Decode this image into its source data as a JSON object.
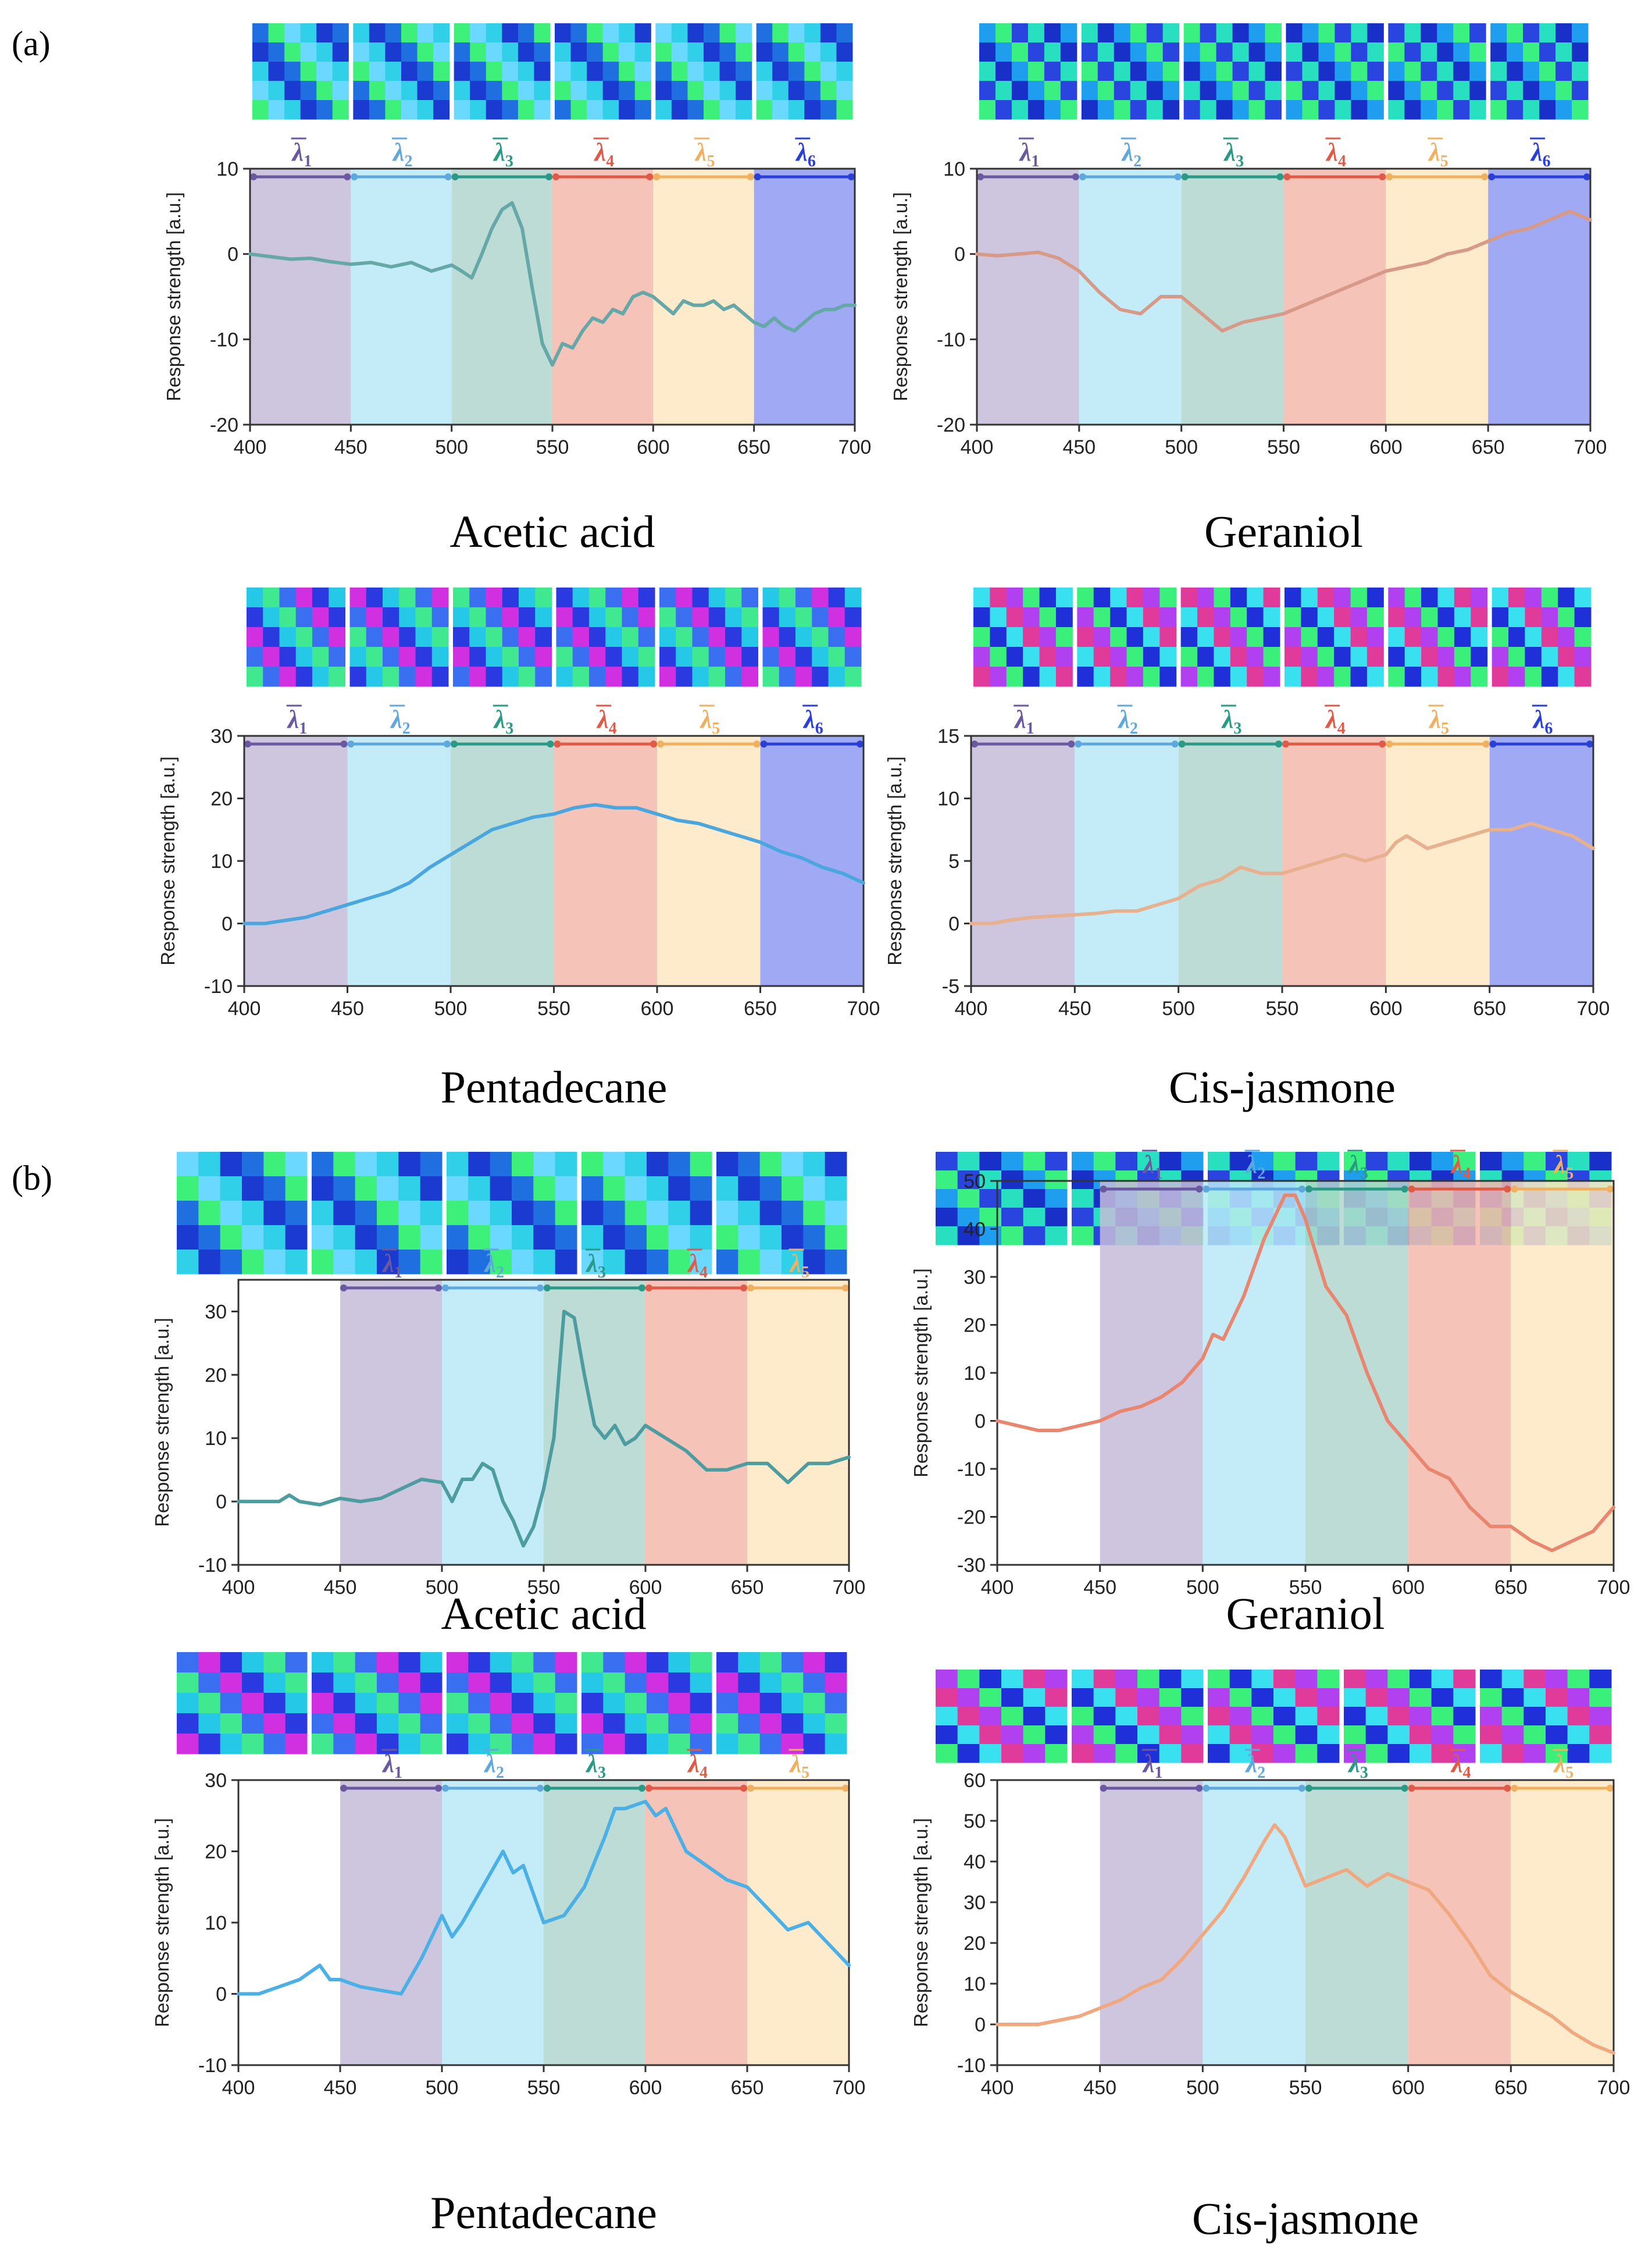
{
  "colors": {
    "band_fill": [
      "#c6bcd9",
      "#b8e9f7",
      "#b2d6cf",
      "#f4b9ad",
      "#fde8c2",
      "#8e9af2"
    ],
    "band_arrow": [
      "#6a58a0",
      "#5fa8de",
      "#2a9a86",
      "#e05a48",
      "#f0b060",
      "#2a3fd8"
    ],
    "line": [
      "#66a7a8",
      "#d79a88",
      "#4aa6df",
      "#e7b08f",
      "#4d9da0",
      "#e8866f",
      "#4ab0e6",
      "#f0a880"
    ]
  },
  "panels": {
    "a": "(a)",
    "b": "(b)"
  },
  "chart_data": [
    {
      "id": "a1",
      "type": "line",
      "title": "Acetic acid",
      "xlabel": "",
      "ylabel": "Response strength [a.u.]",
      "xlim": [
        400,
        700
      ],
      "ylim": [
        -20,
        10
      ],
      "xticks": [
        400,
        450,
        500,
        550,
        600,
        650,
        700
      ],
      "yticks": [
        -20,
        -10,
        0,
        10
      ],
      "bands": [
        {
          "label": "λ",
          "sub": "1",
          "range": [
            400,
            450
          ]
        },
        {
          "label": "λ",
          "sub": "2",
          "range": [
            450,
            500
          ]
        },
        {
          "label": "λ",
          "sub": "3",
          "range": [
            500,
            550
          ]
        },
        {
          "label": "λ",
          "sub": "4",
          "range": [
            550,
            600
          ]
        },
        {
          "label": "λ",
          "sub": "5",
          "range": [
            600,
            650
          ]
        },
        {
          "label": "λ",
          "sub": "6",
          "range": [
            650,
            700
          ]
        }
      ],
      "x": [
        400,
        410,
        420,
        430,
        440,
        450,
        460,
        470,
        480,
        490,
        500,
        505,
        510,
        515,
        520,
        525,
        530,
        535,
        540,
        545,
        550,
        555,
        560,
        565,
        570,
        575,
        580,
        585,
        590,
        595,
        600,
        605,
        610,
        615,
        620,
        625,
        630,
        635,
        640,
        645,
        650,
        655,
        660,
        665,
        670,
        675,
        680,
        685,
        690,
        695,
        700
      ],
      "y": [
        0,
        -0.3,
        -0.6,
        -0.5,
        -0.9,
        -1.2,
        -1.0,
        -1.5,
        -1.0,
        -2.0,
        -1.3,
        -2.0,
        -2.8,
        0.0,
        3.0,
        5.2,
        6.0,
        3.0,
        -4.0,
        -10.5,
        -13.0,
        -10.5,
        -11.0,
        -9.0,
        -7.5,
        -8.0,
        -6.5,
        -7.0,
        -5.0,
        -4.5,
        -5.0,
        -6.0,
        -7.0,
        -5.5,
        -6.0,
        -6.0,
        -5.5,
        -6.5,
        -6.0,
        -7.0,
        -8.0,
        -8.5,
        -7.5,
        -8.5,
        -9.0,
        -8.0,
        -7.0,
        -6.5,
        -6.5,
        -6.0,
        -6.0
      ]
    },
    {
      "id": "a2",
      "type": "line",
      "title": "Geraniol",
      "xlabel": "",
      "ylabel": "Response strength [a.u.]",
      "xlim": [
        400,
        700
      ],
      "ylim": [
        -20,
        10
      ],
      "xticks": [
        400,
        450,
        500,
        550,
        600,
        650,
        700
      ],
      "yticks": [
        -20,
        -10,
        0,
        10
      ],
      "bands": [
        {
          "label": "λ",
          "sub": "1",
          "range": [
            400,
            450
          ]
        },
        {
          "label": "λ",
          "sub": "2",
          "range": [
            450,
            500
          ]
        },
        {
          "label": "λ",
          "sub": "3",
          "range": [
            500,
            550
          ]
        },
        {
          "label": "λ",
          "sub": "4",
          "range": [
            550,
            600
          ]
        },
        {
          "label": "λ",
          "sub": "5",
          "range": [
            600,
            650
          ]
        },
        {
          "label": "λ",
          "sub": "6",
          "range": [
            650,
            700
          ]
        }
      ],
      "x": [
        400,
        410,
        420,
        430,
        440,
        450,
        460,
        470,
        480,
        490,
        500,
        510,
        520,
        530,
        540,
        550,
        560,
        570,
        580,
        590,
        600,
        610,
        620,
        630,
        640,
        650,
        660,
        670,
        680,
        690,
        700
      ],
      "y": [
        0,
        -0.2,
        0.0,
        0.2,
        -0.5,
        -2.0,
        -4.5,
        -6.5,
        -7.0,
        -5.0,
        -5.0,
        -7.0,
        -9.0,
        -8.0,
        -7.5,
        -7.0,
        -6.0,
        -5.0,
        -4.0,
        -3.0,
        -2.0,
        -1.5,
        -1.0,
        0.0,
        0.5,
        1.5,
        2.5,
        3.0,
        4.0,
        5.0,
        4.0
      ]
    },
    {
      "id": "a3",
      "type": "line",
      "title": "Pentadecane",
      "xlabel": "",
      "ylabel": "Response strength [a.u.]",
      "xlim": [
        400,
        700
      ],
      "ylim": [
        -10,
        30
      ],
      "xticks": [
        400,
        450,
        500,
        550,
        600,
        650,
        700
      ],
      "yticks": [
        -10,
        0,
        10,
        20,
        30
      ],
      "bands": [
        {
          "label": "λ",
          "sub": "1",
          "range": [
            400,
            450
          ]
        },
        {
          "label": "λ",
          "sub": "2",
          "range": [
            450,
            500
          ]
        },
        {
          "label": "λ",
          "sub": "3",
          "range": [
            500,
            550
          ]
        },
        {
          "label": "λ",
          "sub": "4",
          "range": [
            550,
            600
          ]
        },
        {
          "label": "λ",
          "sub": "5",
          "range": [
            600,
            650
          ]
        },
        {
          "label": "λ",
          "sub": "6",
          "range": [
            650,
            700
          ]
        }
      ],
      "x": [
        400,
        410,
        420,
        430,
        440,
        450,
        460,
        470,
        480,
        490,
        500,
        510,
        520,
        530,
        540,
        550,
        560,
        570,
        580,
        590,
        600,
        610,
        620,
        630,
        640,
        650,
        660,
        670,
        680,
        690,
        700
      ],
      "y": [
        0,
        0,
        0.5,
        1.0,
        2.0,
        3.0,
        4.0,
        5.0,
        6.5,
        9.0,
        11.0,
        13.0,
        15.0,
        16.0,
        17.0,
        17.5,
        18.5,
        19.0,
        18.5,
        18.5,
        17.5,
        16.5,
        16.0,
        15.0,
        14.0,
        13.0,
        11.5,
        10.5,
        9.0,
        8.0,
        6.5
      ]
    },
    {
      "id": "a4",
      "type": "line",
      "title": "Cis-jasmone",
      "xlabel": "",
      "ylabel": "Response strength [a.u.]",
      "xlim": [
        400,
        700
      ],
      "ylim": [
        -5,
        15
      ],
      "xticks": [
        400,
        450,
        500,
        550,
        600,
        650,
        700
      ],
      "yticks": [
        -5,
        0,
        5,
        10,
        15
      ],
      "bands": [
        {
          "label": "λ",
          "sub": "1",
          "range": [
            400,
            450
          ]
        },
        {
          "label": "λ",
          "sub": "2",
          "range": [
            450,
            500
          ]
        },
        {
          "label": "λ",
          "sub": "3",
          "range": [
            500,
            550
          ]
        },
        {
          "label": "λ",
          "sub": "4",
          "range": [
            550,
            600
          ]
        },
        {
          "label": "λ",
          "sub": "5",
          "range": [
            600,
            650
          ]
        },
        {
          "label": "λ",
          "sub": "6",
          "range": [
            650,
            700
          ]
        }
      ],
      "x": [
        400,
        410,
        420,
        430,
        440,
        450,
        460,
        470,
        480,
        490,
        500,
        510,
        520,
        530,
        540,
        550,
        560,
        570,
        580,
        590,
        600,
        605,
        610,
        620,
        630,
        640,
        650,
        660,
        670,
        680,
        690,
        700
      ],
      "y": [
        0,
        0,
        0.3,
        0.5,
        0.6,
        0.7,
        0.8,
        1.0,
        1.0,
        1.5,
        2.0,
        3.0,
        3.5,
        4.5,
        4.0,
        4.0,
        4.5,
        5.0,
        5.5,
        5.0,
        5.5,
        6.5,
        7.0,
        6.0,
        6.5,
        7.0,
        7.5,
        7.5,
        8.0,
        7.5,
        7.0,
        6.0
      ]
    },
    {
      "id": "b1",
      "type": "line",
      "title": "Acetic acid",
      "xlabel": "",
      "ylabel": "Response strength [a.u.]",
      "xlim": [
        400,
        700
      ],
      "ylim": [
        -10,
        35
      ],
      "xticks": [
        400,
        450,
        500,
        550,
        600,
        650,
        700
      ],
      "yticks": [
        -10,
        0,
        10,
        20,
        30
      ],
      "bands": [
        {
          "label": "λ",
          "sub": "1",
          "range": [
            450,
            500
          ]
        },
        {
          "label": "λ",
          "sub": "2",
          "range": [
            500,
            550
          ]
        },
        {
          "label": "λ",
          "sub": "3",
          "range": [
            550,
            600
          ]
        },
        {
          "label": "λ",
          "sub": "4",
          "range": [
            600,
            650
          ]
        },
        {
          "label": "λ",
          "sub": "5",
          "range": [
            650,
            700
          ]
        }
      ],
      "x": [
        400,
        410,
        420,
        425,
        430,
        440,
        450,
        460,
        470,
        480,
        490,
        500,
        505,
        510,
        515,
        520,
        525,
        530,
        535,
        540,
        545,
        550,
        555,
        560,
        565,
        570,
        575,
        580,
        585,
        590,
        595,
        600,
        610,
        620,
        630,
        640,
        650,
        660,
        670,
        680,
        690,
        700
      ],
      "y": [
        0,
        0,
        0,
        1.0,
        0,
        -0.5,
        0.5,
        0,
        0.5,
        2.0,
        3.5,
        3.0,
        0,
        3.5,
        3.5,
        6.0,
        5.0,
        0,
        -3.0,
        -7.0,
        -4.0,
        2.0,
        10.0,
        30.0,
        29.0,
        20.0,
        12.0,
        10.0,
        12.0,
        9.0,
        10.0,
        12.0,
        10.0,
        8.0,
        5.0,
        5.0,
        6.0,
        6.0,
        3.0,
        6.0,
        6.0,
        7.0
      ]
    },
    {
      "id": "b2",
      "type": "line",
      "title": "Geraniol",
      "xlabel": "",
      "ylabel": "Response strength [a.u.]",
      "xlim": [
        400,
        700
      ],
      "ylim": [
        -30,
        50
      ],
      "xticks": [
        400,
        450,
        500,
        550,
        600,
        650,
        700
      ],
      "yticks": [
        -30,
        -20,
        -10,
        0,
        10,
        20,
        30,
        40,
        50
      ],
      "bands": [
        {
          "label": "λ",
          "sub": "1",
          "range": [
            450,
            500
          ]
        },
        {
          "label": "λ",
          "sub": "2",
          "range": [
            500,
            550
          ]
        },
        {
          "label": "λ",
          "sub": "3",
          "range": [
            550,
            600
          ]
        },
        {
          "label": "λ",
          "sub": "4",
          "range": [
            600,
            650
          ]
        },
        {
          "label": "λ",
          "sub": "5",
          "range": [
            650,
            700
          ]
        }
      ],
      "x": [
        400,
        410,
        420,
        430,
        440,
        450,
        460,
        470,
        480,
        490,
        500,
        505,
        510,
        520,
        530,
        540,
        545,
        550,
        560,
        570,
        580,
        590,
        600,
        610,
        620,
        630,
        640,
        650,
        660,
        670,
        680,
        690,
        700
      ],
      "y": [
        0,
        -1,
        -2,
        -2,
        -1,
        0,
        2,
        3,
        5,
        8,
        13,
        18,
        17,
        26,
        38,
        47,
        47,
        42,
        28,
        22,
        10,
        0,
        -5,
        -10,
        -12,
        -18,
        -22,
        -22,
        -25,
        -27,
        -25,
        -23,
        -18
      ]
    },
    {
      "id": "b3",
      "type": "line",
      "title": "Pentadecane",
      "xlabel": "",
      "ylabel": "Response strength [a.u.]",
      "xlim": [
        400,
        700
      ],
      "ylim": [
        -10,
        30
      ],
      "xticks": [
        400,
        450,
        500,
        550,
        600,
        650,
        700
      ],
      "yticks": [
        -10,
        0,
        10,
        20,
        30
      ],
      "bands": [
        {
          "label": "λ",
          "sub": "1",
          "range": [
            450,
            500
          ]
        },
        {
          "label": "λ",
          "sub": "2",
          "range": [
            500,
            550
          ]
        },
        {
          "label": "λ",
          "sub": "3",
          "range": [
            550,
            600
          ]
        },
        {
          "label": "λ",
          "sub": "4",
          "range": [
            600,
            650
          ]
        },
        {
          "label": "λ",
          "sub": "5",
          "range": [
            650,
            700
          ]
        }
      ],
      "x": [
        400,
        410,
        420,
        430,
        440,
        445,
        450,
        460,
        470,
        480,
        490,
        500,
        505,
        510,
        520,
        530,
        535,
        540,
        550,
        560,
        570,
        580,
        585,
        590,
        600,
        605,
        610,
        620,
        630,
        640,
        650,
        660,
        670,
        680,
        690,
        700
      ],
      "y": [
        0,
        0,
        1.0,
        2.0,
        4.0,
        2.0,
        2.0,
        1.0,
        0.5,
        0,
        5.0,
        11.0,
        8.0,
        10.0,
        15.0,
        20.0,
        17.0,
        18.0,
        10.0,
        11.0,
        15.0,
        22.0,
        26.0,
        26.0,
        27.0,
        25.0,
        26.0,
        20.0,
        18.0,
        16.0,
        15.0,
        12.0,
        9.0,
        10.0,
        7.0,
        4.0
      ]
    },
    {
      "id": "b4",
      "type": "line",
      "title": "Cis-jasmone",
      "xlabel": "",
      "ylabel": "Response strength [a.u.]",
      "xlim": [
        400,
        700
      ],
      "ylim": [
        -10,
        60
      ],
      "xticks": [
        400,
        450,
        500,
        550,
        600,
        650,
        700
      ],
      "yticks": [
        -10,
        0,
        10,
        20,
        30,
        40,
        50,
        60
      ],
      "bands": [
        {
          "label": "λ",
          "sub": "1",
          "range": [
            450,
            500
          ]
        },
        {
          "label": "λ",
          "sub": "2",
          "range": [
            500,
            550
          ]
        },
        {
          "label": "λ",
          "sub": "3",
          "range": [
            550,
            600
          ]
        },
        {
          "label": "λ",
          "sub": "4",
          "range": [
            600,
            650
          ]
        },
        {
          "label": "λ",
          "sub": "5",
          "range": [
            650,
            700
          ]
        }
      ],
      "x": [
        400,
        410,
        420,
        430,
        440,
        450,
        460,
        470,
        480,
        490,
        500,
        510,
        520,
        530,
        535,
        540,
        550,
        560,
        570,
        580,
        590,
        600,
        610,
        620,
        630,
        640,
        650,
        660,
        670,
        680,
        690,
        700
      ],
      "y": [
        0,
        0,
        0,
        1,
        2,
        4,
        6,
        9,
        11,
        16,
        22,
        28,
        36,
        45,
        49,
        46,
        34,
        36,
        38,
        34,
        37,
        35,
        33,
        27,
        20,
        12,
        8,
        5,
        2,
        -2,
        -5,
        -7
      ]
    }
  ]
}
